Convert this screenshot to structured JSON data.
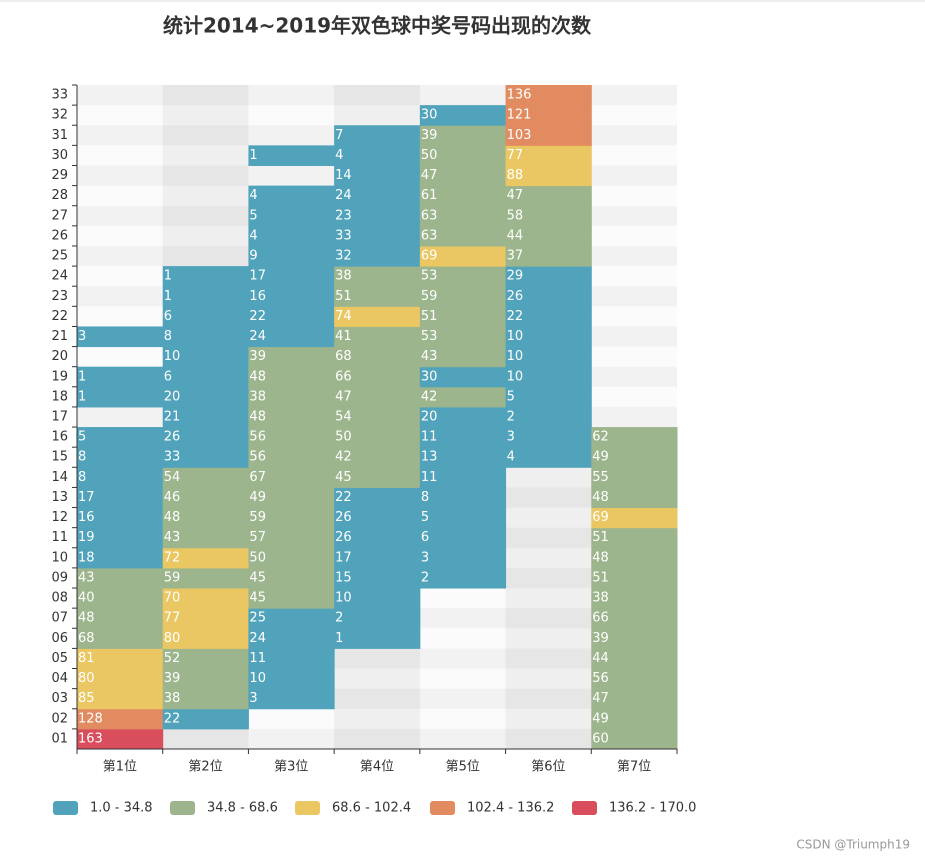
{
  "chart_data": {
    "type": "heatmap",
    "title": "统计2014~2019年双色球中奖号码出现的次数",
    "categories": [
      "第1位",
      "第2位",
      "第3位",
      "第4位",
      "第5位",
      "第6位",
      "第7位"
    ],
    "y_categories": [
      "01",
      "02",
      "03",
      "04",
      "05",
      "06",
      "07",
      "08",
      "09",
      "10",
      "11",
      "12",
      "13",
      "14",
      "15",
      "16",
      "17",
      "18",
      "19",
      "20",
      "21",
      "22",
      "23",
      "24",
      "25",
      "26",
      "27",
      "28",
      "29",
      "30",
      "31",
      "32",
      "33"
    ],
    "values": [
      [
        163,
        128,
        85,
        80,
        81,
        68,
        48,
        40,
        43,
        18,
        19,
        16,
        17,
        8,
        8,
        5,
        null,
        1,
        1,
        null,
        3,
        null,
        null,
        null,
        null,
        null,
        null,
        null,
        null,
        null,
        null,
        null,
        null
      ],
      [
        null,
        22,
        38,
        39,
        52,
        80,
        77,
        70,
        59,
        72,
        43,
        48,
        46,
        54,
        33,
        26,
        21,
        20,
        6,
        10,
        8,
        6,
        1,
        1,
        null,
        null,
        null,
        null,
        null,
        null,
        null,
        null,
        null
      ],
      [
        null,
        null,
        3,
        10,
        11,
        24,
        25,
        45,
        45,
        50,
        57,
        59,
        49,
        67,
        56,
        56,
        48,
        38,
        48,
        39,
        24,
        22,
        16,
        17,
        9,
        4,
        5,
        4,
        null,
        1,
        null,
        null,
        null
      ],
      [
        null,
        null,
        null,
        null,
        null,
        1,
        2,
        10,
        15,
        17,
        26,
        26,
        22,
        45,
        42,
        50,
        54,
        47,
        66,
        68,
        41,
        74,
        51,
        38,
        32,
        33,
        23,
        24,
        14,
        4,
        7,
        null,
        null
      ],
      [
        null,
        null,
        null,
        null,
        null,
        null,
        null,
        null,
        2,
        3,
        6,
        5,
        8,
        11,
        13,
        11,
        20,
        42,
        30,
        43,
        53,
        51,
        59,
        53,
        69,
        63,
        63,
        61,
        47,
        50,
        39,
        30,
        null
      ],
      [
        null,
        null,
        null,
        null,
        null,
        null,
        null,
        null,
        null,
        null,
        null,
        null,
        null,
        null,
        4,
        3,
        2,
        5,
        10,
        10,
        10,
        22,
        26,
        29,
        37,
        44,
        58,
        47,
        88,
        77,
        103,
        121,
        136
      ],
      [
        60,
        49,
        47,
        56,
        44,
        39,
        66,
        38,
        51,
        48,
        51,
        69,
        48,
        55,
        49,
        62,
        null,
        null,
        null,
        null,
        null,
        null,
        null,
        null,
        null,
        null,
        null,
        null,
        null,
        null,
        null,
        null,
        null
      ]
    ],
    "pieces": [
      {
        "min": 1.0,
        "max": 34.8,
        "label": "1.0 - 34.8",
        "color": "#50a3ba"
      },
      {
        "min": 34.8,
        "max": 68.6,
        "label": "34.8 - 68.6",
        "color": "#9cb58d"
      },
      {
        "min": 68.6,
        "max": 102.4,
        "label": "68.6 - 102.4",
        "color": "#eac763"
      },
      {
        "min": 102.4,
        "max": 136.2,
        "label": "102.4 - 136.2",
        "color": "#e28b60"
      },
      {
        "min": 136.2,
        "max": 170.0,
        "label": "136.2 - 170.0",
        "color": "#d94e5d"
      }
    ],
    "show_values": true,
    "watermark": "CSDN @Triumph19"
  }
}
